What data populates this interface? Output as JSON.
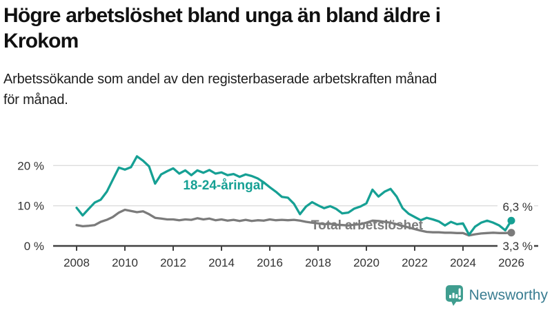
{
  "header": {
    "title_line1": "Högre arbetslöshet bland unga än bland äldre i",
    "title_line2": "Krokom",
    "subtitle_line1": "Arbetssökande som andel av den registerbaserade arbetskraften månad",
    "subtitle_line2": "för månad."
  },
  "chart_data": {
    "type": "line",
    "title": "Arbetssökande som andel av den registerbaserade arbetskraften månad för månad",
    "x_unit": "year, quarterly samples (monthly data in source)",
    "xlim": [
      2008,
      2026
    ],
    "ylim": [
      0,
      24
    ],
    "grid": "horizontal",
    "legend_position": "inline-labels",
    "x_ticks": [
      2008,
      2010,
      2012,
      2014,
      2016,
      2018,
      2020,
      2022,
      2024,
      2026
    ],
    "y_ticks": [
      {
        "value": 0,
        "label": "0 %"
      },
      {
        "value": 10,
        "label": "10 %"
      },
      {
        "value": 20,
        "label": "20 %"
      }
    ],
    "x": [
      2008,
      2008.25,
      2008.5,
      2008.75,
      2009,
      2009.25,
      2009.5,
      2009.75,
      2010,
      2010.25,
      2010.5,
      2010.75,
      2011,
      2011.25,
      2011.5,
      2011.75,
      2012,
      2012.25,
      2012.5,
      2012.75,
      2013,
      2013.25,
      2013.5,
      2013.75,
      2014,
      2014.25,
      2014.5,
      2014.75,
      2015,
      2015.25,
      2015.5,
      2015.75,
      2016,
      2016.25,
      2016.5,
      2016.75,
      2017,
      2017.25,
      2017.5,
      2017.75,
      2018,
      2018.25,
      2018.5,
      2018.75,
      2019,
      2019.25,
      2019.5,
      2019.75,
      2020,
      2020.25,
      2020.5,
      2020.75,
      2021,
      2021.25,
      2021.5,
      2021.75,
      2022,
      2022.25,
      2022.5,
      2022.75,
      2023,
      2023.25,
      2023.5,
      2023.75,
      2024,
      2024.25,
      2024.5,
      2024.75,
      2025,
      2025.25,
      2025.5,
      2025.75,
      2026
    ],
    "series": [
      {
        "name": "18-24-åringar",
        "color": "#16a094",
        "end_value": 6.3,
        "end_label": "6,3 %",
        "values": [
          9.5,
          7.6,
          9.2,
          10.8,
          11.5,
          13.5,
          16.5,
          19.5,
          19.0,
          19.6,
          22.3,
          21.2,
          19.8,
          15.5,
          17.8,
          18.6,
          19.3,
          18.0,
          18.8,
          17.6,
          18.8,
          18.2,
          18.9,
          18.0,
          18.3,
          17.6,
          17.9,
          17.2,
          17.8,
          17.4,
          16.8,
          15.8,
          14.6,
          13.5,
          12.2,
          12.0,
          10.5,
          7.9,
          9.8,
          10.9,
          10.1,
          9.4,
          9.9,
          9.2,
          8.1,
          8.3,
          9.3,
          9.8,
          10.6,
          14.0,
          12.3,
          13.5,
          14.2,
          12.3,
          9.4,
          8.0,
          7.2,
          6.4,
          7.0,
          6.6,
          6.1,
          5.1,
          6.0,
          5.4,
          5.6,
          2.8,
          4.8,
          5.8,
          6.3,
          5.8,
          5.1,
          3.9,
          6.3
        ]
      },
      {
        "name": "Total arbetslöshet",
        "color": "#7b7b7b",
        "end_value": 3.3,
        "end_label": "3,3 %",
        "values": [
          5.2,
          4.9,
          5.0,
          5.2,
          6.0,
          6.5,
          7.2,
          8.3,
          9.0,
          8.7,
          8.4,
          8.6,
          7.9,
          7.0,
          6.8,
          6.6,
          6.6,
          6.4,
          6.6,
          6.5,
          6.9,
          6.6,
          6.8,
          6.4,
          6.6,
          6.3,
          6.5,
          6.2,
          6.5,
          6.2,
          6.4,
          6.3,
          6.6,
          6.4,
          6.5,
          6.4,
          6.5,
          6.3,
          6.0,
          5.8,
          5.6,
          5.4,
          5.5,
          5.3,
          5.2,
          5.1,
          5.3,
          5.4,
          5.8,
          6.3,
          6.2,
          6.0,
          5.8,
          5.4,
          5.0,
          4.6,
          4.2,
          3.8,
          3.5,
          3.4,
          3.4,
          3.3,
          3.3,
          3.2,
          3.2,
          2.6,
          2.9,
          3.1,
          3.2,
          3.3,
          3.2,
          3.2,
          3.3
        ]
      }
    ]
  },
  "colors": {
    "grid_line": "#dcdcdc",
    "axis_line": "#404040",
    "axis_text": "#333333"
  },
  "footer": {
    "brand": "Newsworthy",
    "brand_color": "#3a7d91",
    "logo_color": "#3f9d8f",
    "logo_icon": "bar-chart-speech-bubble"
  }
}
